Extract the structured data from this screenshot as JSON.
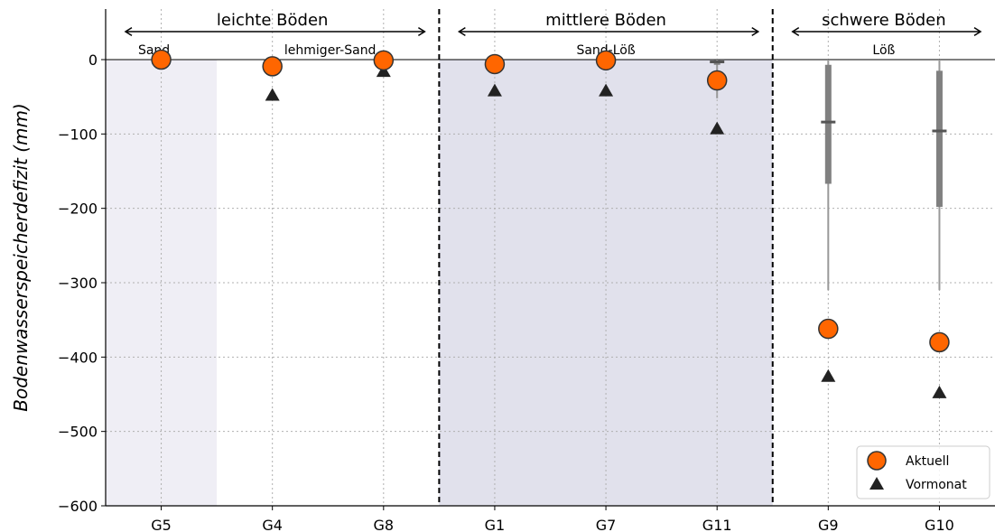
{
  "chart_data": {
    "type": "scatter",
    "ylabel": "Bodenwasserspeicherdefizit (mm)",
    "ylim": [
      -600,
      0
    ],
    "yticks": [
      0,
      -100,
      -200,
      -300,
      -400,
      -500,
      -600
    ],
    "ytick_labels": [
      "0",
      "−100",
      "−200",
      "−300",
      "−400",
      "−500",
      "−600"
    ],
    "categories": [
      "G5",
      "G4",
      "G8",
      "G1",
      "G7",
      "G11",
      "G9",
      "G10"
    ],
    "grid": true,
    "legend_position": "bottom-right",
    "groups": [
      {
        "label": "leichte Böden",
        "from": "G5",
        "to": "G8"
      },
      {
        "label": "mittlere Böden",
        "from": "G1",
        "to": "G11"
      },
      {
        "label": "schwere Böden",
        "from": "G9",
        "to": "G10"
      }
    ],
    "soil_labels": [
      {
        "label": "Sand",
        "at": "G5"
      },
      {
        "label": "lehmiger-Sand",
        "at": "G8"
      },
      {
        "label": "Sand-Löß",
        "at": "G7"
      },
      {
        "label": "Löß",
        "at": "G9-G10"
      }
    ],
    "series": [
      {
        "name": "Aktuell",
        "marker": "circle",
        "color": "#ff6600",
        "values": [
          0,
          -9,
          -1,
          -6,
          -1,
          -28,
          -362,
          -380
        ]
      },
      {
        "name": "Vormonat",
        "marker": "triangle",
        "color": "#222222",
        "values": [
          0,
          -48,
          -16,
          -42,
          -42,
          -93,
          -426,
          -448
        ]
      }
    ],
    "boxes": [
      {
        "category": "G11",
        "whisker_low": -52,
        "q1": -7,
        "median": -3,
        "q3": -1,
        "whisker_high": 0
      },
      {
        "category": "G9",
        "whisker_low": -310,
        "q1": -167,
        "median": -84,
        "q3": -7,
        "whisker_high": 0
      },
      {
        "category": "G10",
        "whisker_low": -310,
        "q1": -198,
        "median": -96,
        "q3": -15,
        "whisker_high": 0
      }
    ],
    "colors": {
      "shade_light": "#efeef5",
      "shade_mid": "#e1e1ec",
      "box": "#808080"
    }
  }
}
